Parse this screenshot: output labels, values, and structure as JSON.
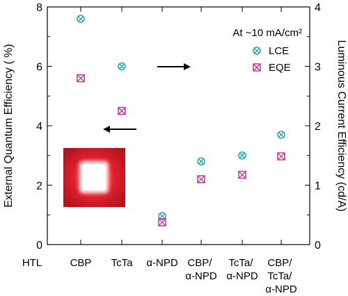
{
  "chart_data": {
    "type": "scatter",
    "categories": [
      [
        "CBP"
      ],
      [
        "TcTa"
      ],
      [
        "α-NPD"
      ],
      [
        "CBP/",
        "α-NPD"
      ],
      [
        "TcTa/",
        "α-NPD"
      ],
      [
        "CBP/",
        "TcTa/",
        "α-NPD"
      ]
    ],
    "x_prefix_label": "HTL",
    "series": [
      {
        "name": "LCE",
        "axis": "right",
        "marker": "circle-x",
        "color": "#1aa7b3",
        "values": [
          3.8,
          3.0,
          0.48,
          1.4,
          1.5,
          1.85
        ]
      },
      {
        "name": "EQE",
        "axis": "left",
        "marker": "square-x",
        "color": "#c2368f",
        "values": [
          5.6,
          4.5,
          0.75,
          2.2,
          2.35,
          2.97
        ]
      }
    ],
    "ylabel_left": "External Quantum Efficiency ( %)",
    "ylabel_right": "Luminous Current Efficiency (cd/A)",
    "ylim_left": [
      0,
      8
    ],
    "ylim_right": [
      0,
      4
    ],
    "yticks_left": [
      "0",
      "2",
      "4",
      "6",
      "8"
    ],
    "yticks_right": [
      "0",
      "1",
      "2",
      "3",
      "4"
    ],
    "annotation": "At ~10 mA/cm²",
    "legend_position": "top-right",
    "grid": false,
    "inset_image": "red-emitting-pixel-photo"
  }
}
